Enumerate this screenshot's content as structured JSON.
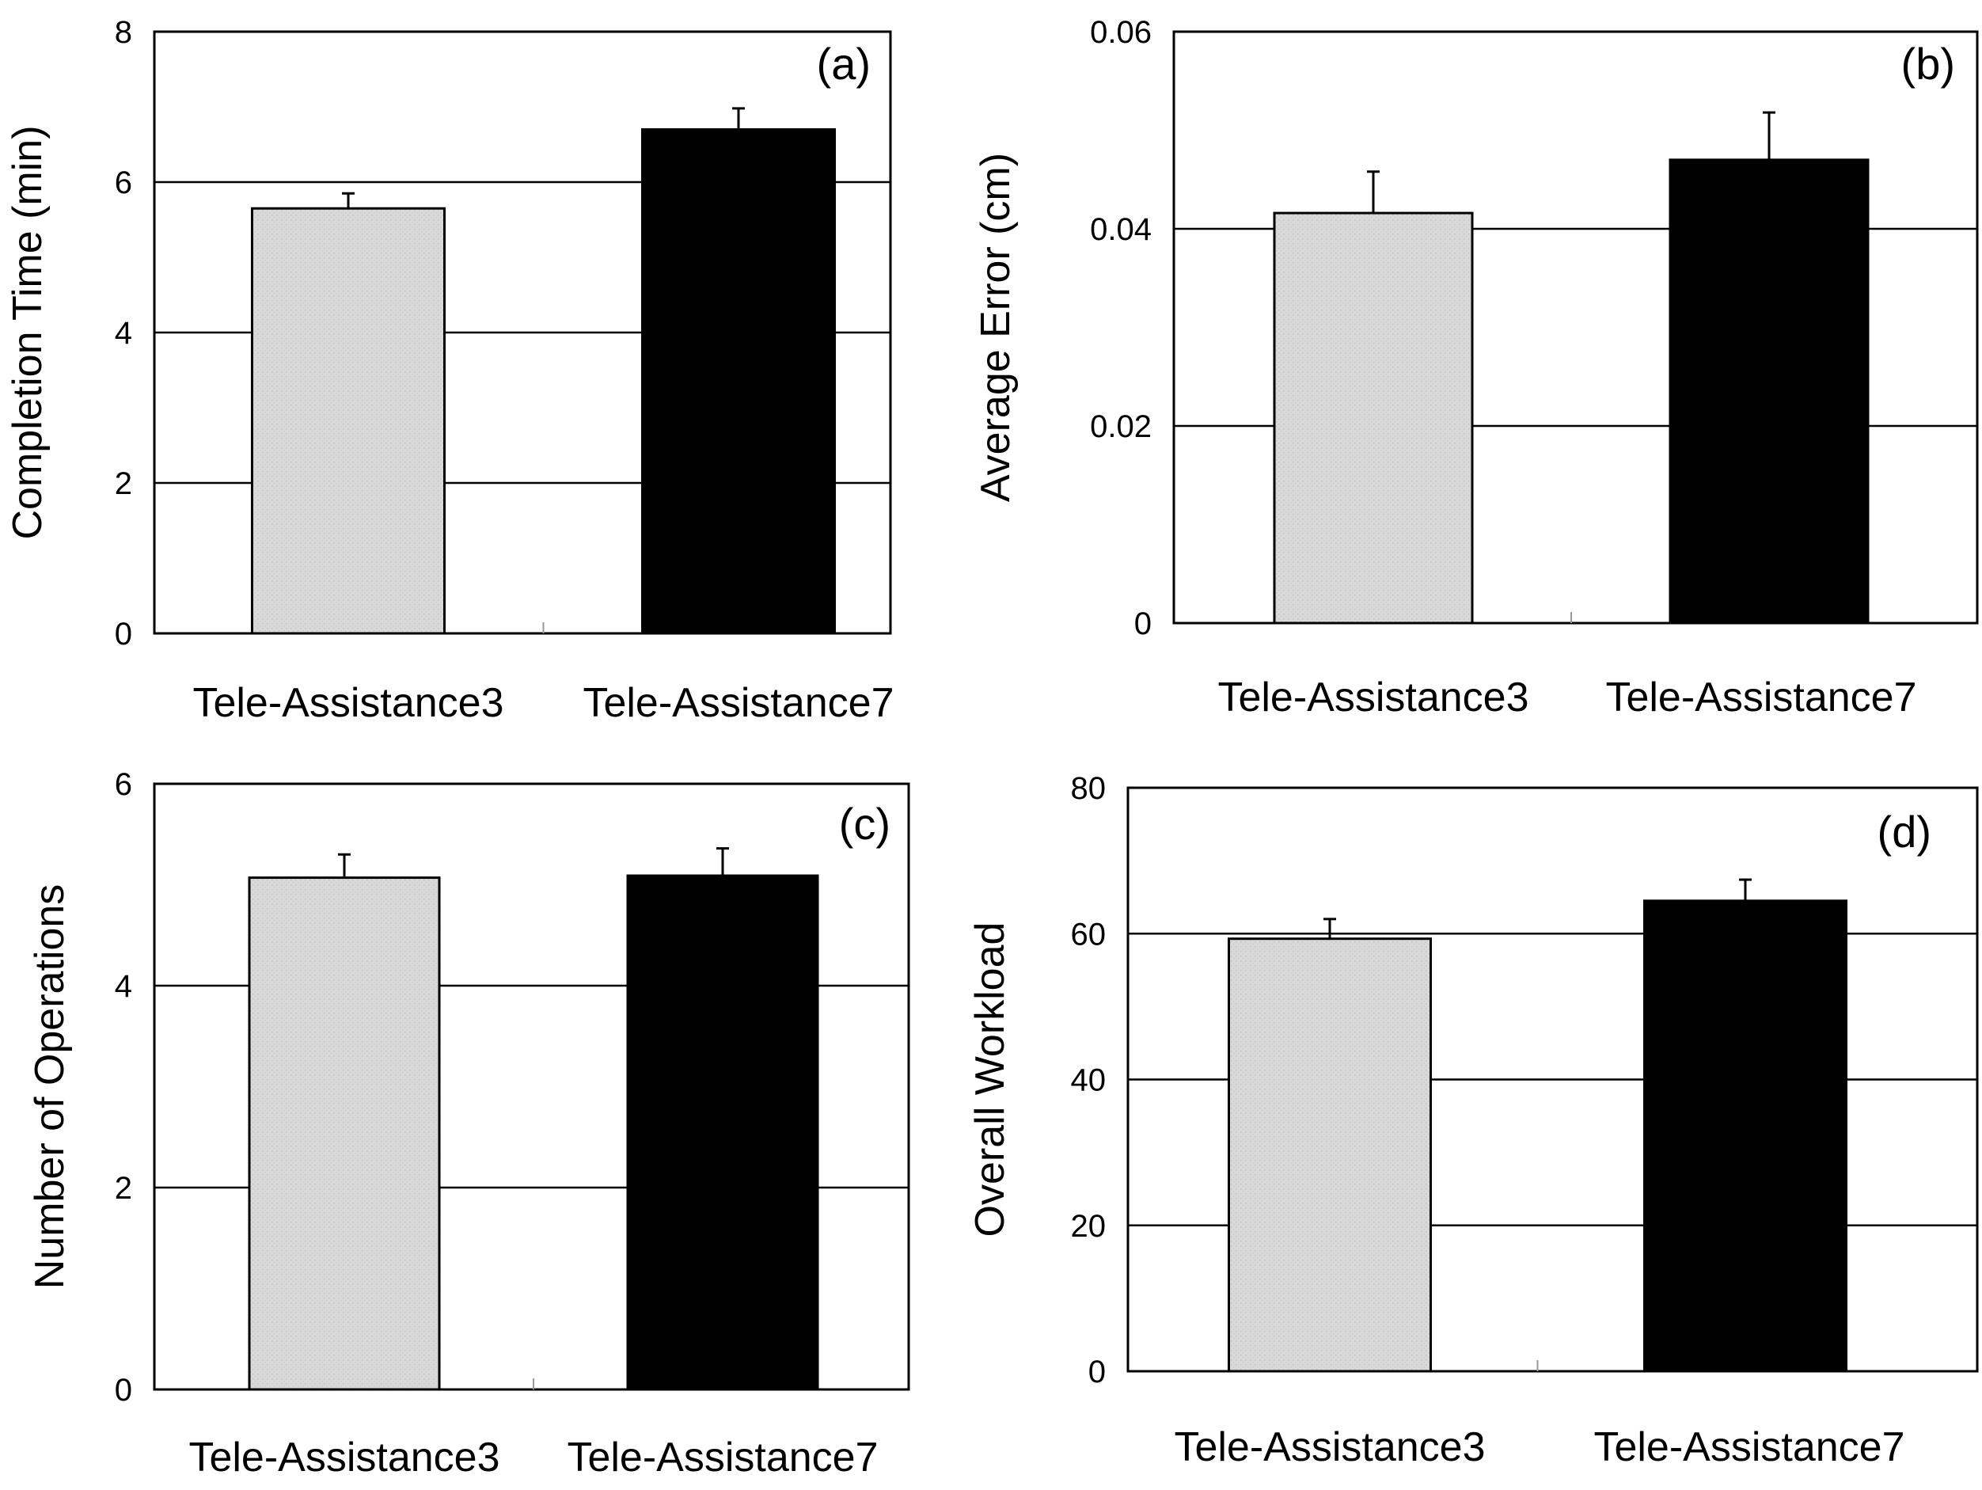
{
  "chart_data": [
    {
      "type": "bar",
      "panel": "(a)",
      "categories": [
        "Tele-Assistance3",
        "Tele-Assistance7"
      ],
      "values": [
        5.65,
        6.7
      ],
      "errors": [
        0.2,
        0.28
      ],
      "colors": [
        "#d9d9d9",
        "#000000"
      ],
      "ylabel": "Completion Time (min)",
      "xlabel": "",
      "ylim": [
        0,
        8
      ],
      "yticks": [
        0,
        2,
        4,
        6,
        8
      ],
      "ytick_labels": [
        "0",
        "2",
        "4",
        "6",
        "8"
      ],
      "grid": true
    },
    {
      "type": "bar",
      "panel": "(b)",
      "categories": [
        "Tele-Assistance3",
        "Tele-Assistance7"
      ],
      "values": [
        0.0416,
        0.047
      ],
      "errors": [
        0.0042,
        0.0048
      ],
      "colors": [
        "#d9d9d9",
        "#000000"
      ],
      "ylabel": "Average Error (cm)",
      "xlabel": "",
      "ylim": [
        0,
        0.06
      ],
      "yticks": [
        0,
        0.02,
        0.04,
        0.06
      ],
      "ytick_labels": [
        "0",
        "0.02",
        "0.04",
        "0.06"
      ],
      "grid": true
    },
    {
      "type": "bar",
      "panel": "(c)",
      "categories": [
        "Tele-Assistance3",
        "Tele-Assistance7"
      ],
      "values": [
        5.07,
        5.09
      ],
      "errors": [
        0.23,
        0.27
      ],
      "colors": [
        "#d9d9d9",
        "#000000"
      ],
      "ylabel": "Number of Operations",
      "xlabel": "",
      "ylim": [
        0,
        6
      ],
      "yticks": [
        0,
        2,
        4,
        6
      ],
      "ytick_labels": [
        "0",
        "2",
        "4",
        "6"
      ],
      "grid": true
    },
    {
      "type": "bar",
      "panel": "(d)",
      "categories": [
        "Tele-Assistance3",
        "Tele-Assistance7"
      ],
      "values": [
        59.3,
        64.5
      ],
      "errors": [
        2.7,
        2.9
      ],
      "colors": [
        "#d9d9d9",
        "#000000"
      ],
      "ylabel": "Overall Workload",
      "xlabel": "",
      "ylim": [
        0,
        80
      ],
      "yticks": [
        0,
        20,
        40,
        60,
        80
      ],
      "ytick_labels": [
        "0",
        "20",
        "40",
        "60",
        "80"
      ],
      "grid": true
    }
  ]
}
